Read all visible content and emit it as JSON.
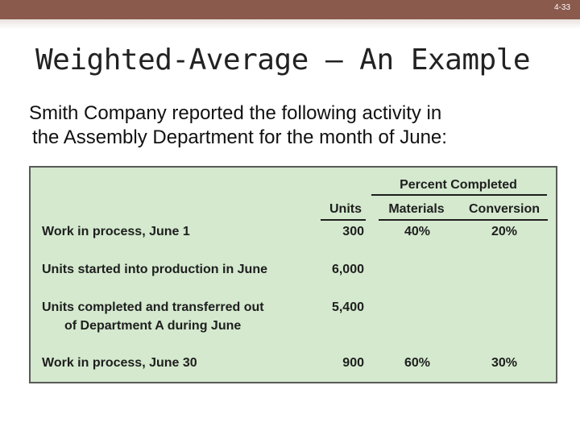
{
  "slide": {
    "number": "4-33"
  },
  "title": "Weighted-Average – An Example",
  "intro": {
    "line1": "Smith Company reported the following activity in",
    "line2": "the Assembly Department for the month of June:"
  },
  "table": {
    "group_header": "Percent Completed",
    "columns": {
      "units": "Units",
      "materials": "Materials",
      "conversion": "Conversion"
    },
    "rows": [
      {
        "label": "Work in process, June 1",
        "label2": "",
        "units": "300",
        "materials": "40%",
        "conversion": "20%"
      },
      {
        "label": "Units started into production in June",
        "label2": "",
        "units": "6,000",
        "materials": "",
        "conversion": ""
      },
      {
        "label": "Units completed and transferred out",
        "label2": "of Department A during June",
        "units": "5,400",
        "materials": "",
        "conversion": ""
      },
      {
        "label": "Work in process, June 30",
        "label2": "",
        "units": "900",
        "materials": "60%",
        "conversion": "30%"
      }
    ]
  }
}
